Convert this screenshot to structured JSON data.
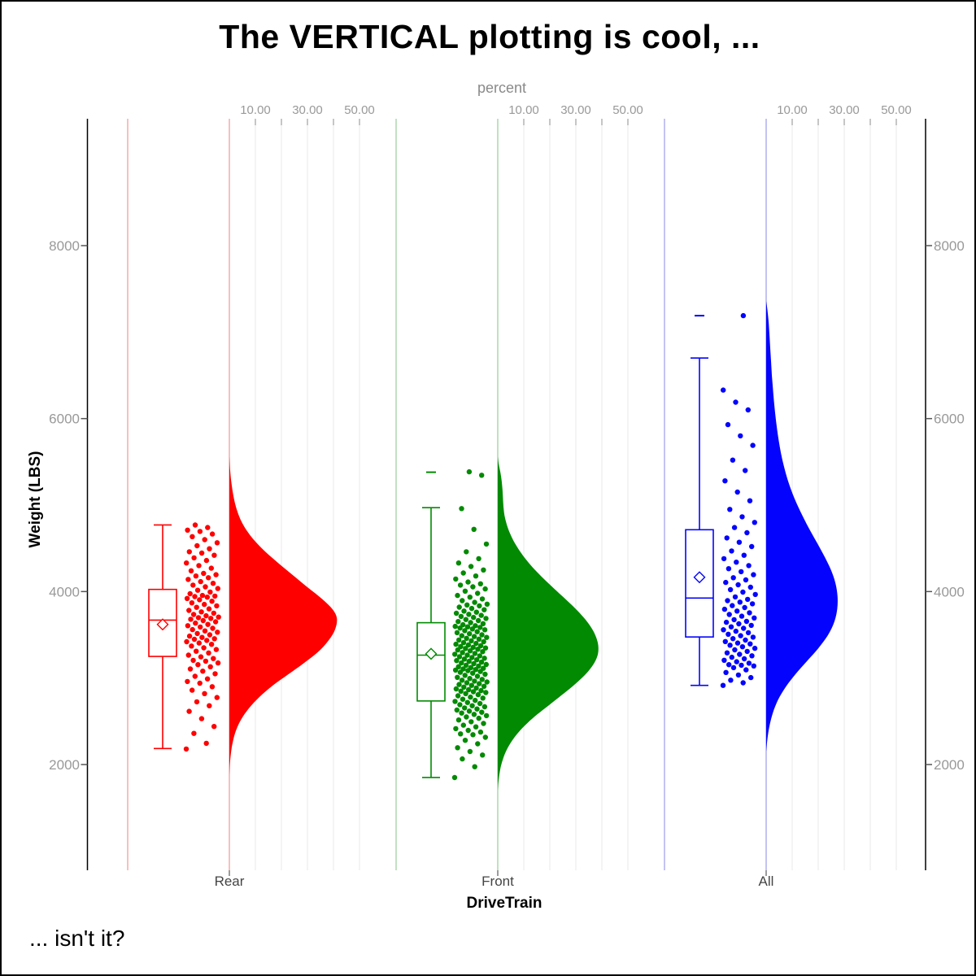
{
  "title": "The VERTICAL plotting is cool, ...",
  "footer_note": "... isn't it?",
  "chart_data": {
    "type": "raincloud (half-violin + box + jitter), vertical",
    "title": "The VERTICAL plotting is cool, ...",
    "x_axis": {
      "label": "DriveTrain",
      "categories": [
        "Rear",
        "Front",
        "All"
      ]
    },
    "y_axis": {
      "label": "Weight (LBS)",
      "ticks": [
        2000,
        4000,
        6000,
        8000
      ],
      "range": [
        1000,
        9400
      ],
      "sides": "both"
    },
    "percent_axis": {
      "label": "percent",
      "ticks": [
        10,
        20,
        30,
        40,
        50
      ],
      "labeled_ticks": [
        10,
        30,
        50
      ],
      "tick_format_decimals": 2,
      "position": "top, repeated per group"
    },
    "grid": "vertical percent gridlines, light gray",
    "legend": "none",
    "colors": {
      "Rear": "#fe0000",
      "Front": "#028a02",
      "All": "#0404fe",
      "Rear_pale": "#f6b0b0",
      "Front_pale": "#b2d8b2",
      "All_pale": "#b4b4f0",
      "gridline": "#ededed",
      "tick_label": "#999999",
      "axis_line": "#000000"
    },
    "groups": [
      {
        "name": "Rear",
        "color": "#fe0000",
        "pale_color": "#f6b0b0",
        "box": {
          "whisker_low": 2185,
          "q1": 3250,
          "median": 3670,
          "q3": 4025,
          "whisker_high": 4770,
          "mean": 3620,
          "outliers": []
        },
        "violin_profile": [
          [
            5560,
            0
          ],
          [
            5400,
            0.3
          ],
          [
            5250,
            0.8
          ],
          [
            5100,
            1.6
          ],
          [
            4950,
            2.8
          ],
          [
            4800,
            4.8
          ],
          [
            4650,
            8
          ],
          [
            4500,
            12.5
          ],
          [
            4350,
            18
          ],
          [
            4200,
            24
          ],
          [
            4050,
            30
          ],
          [
            3930,
            35
          ],
          [
            3800,
            39.5
          ],
          [
            3690,
            41.3
          ],
          [
            3560,
            40.6
          ],
          [
            3430,
            38
          ],
          [
            3300,
            34
          ],
          [
            3170,
            28.5
          ],
          [
            3040,
            22.5
          ],
          [
            2910,
            16.5
          ],
          [
            2780,
            11.5
          ],
          [
            2650,
            7.5
          ],
          [
            2520,
            4.5
          ],
          [
            2390,
            2.5
          ],
          [
            2260,
            1.3
          ],
          [
            2130,
            0.6
          ],
          [
            2000,
            0.2
          ],
          [
            1880,
            0
          ]
        ],
        "points": [
          2180,
          2245,
          2360,
          2440,
          2530,
          2615,
          2680,
          2725,
          2775,
          2820,
          2860,
          2900,
          2940,
          2960,
          2990,
          3020,
          3050,
          3080,
          3105,
          3130,
          3155,
          3175,
          3195,
          3205,
          3225,
          3245,
          3265,
          3290,
          3310,
          3330,
          3350,
          3370,
          3390,
          3405,
          3420,
          3435,
          3448,
          3455,
          3470,
          3485,
          3500,
          3515,
          3530,
          3545,
          3560,
          3575,
          3590,
          3605,
          3620,
          3635,
          3650,
          3665,
          3680,
          3690,
          3698,
          3705,
          3720,
          3735,
          3750,
          3765,
          3782,
          3800,
          3818,
          3835,
          3852,
          3870,
          3888,
          3905,
          3920,
          3935,
          3942,
          3948,
          3955,
          3975,
          3995,
          4015,
          4035,
          4055,
          4075,
          4095,
          4115,
          4140,
          4160,
          4180,
          4195,
          4210,
          4240,
          4270,
          4300,
          4330,
          4360,
          4390,
          4420,
          4445,
          4460,
          4495,
          4530,
          4565,
          4600,
          4635,
          4665,
          4695,
          4710,
          4740,
          4770
        ]
      },
      {
        "name": "Front",
        "color": "#028a02",
        "pale_color": "#b2d8b2",
        "box": {
          "whisker_low": 1850,
          "q1": 2735,
          "median": 3265,
          "q3": 3640,
          "whisker_high": 4970,
          "mean": 3280,
          "outliers": [
            5380
          ]
        },
        "violin_profile": [
          [
            5560,
            0
          ],
          [
            5470,
            0.4
          ],
          [
            5380,
            1
          ],
          [
            5280,
            1.5
          ],
          [
            5180,
            1.8
          ],
          [
            5080,
            2
          ],
          [
            4980,
            2.2
          ],
          [
            4880,
            2.6
          ],
          [
            4780,
            3.4
          ],
          [
            4680,
            4.6
          ],
          [
            4580,
            6.2
          ],
          [
            4480,
            8.2
          ],
          [
            4380,
            10.6
          ],
          [
            4280,
            13.4
          ],
          [
            4180,
            16.6
          ],
          [
            4080,
            20
          ],
          [
            3980,
            23.6
          ],
          [
            3880,
            27.2
          ],
          [
            3780,
            30.6
          ],
          [
            3680,
            33.6
          ],
          [
            3580,
            36
          ],
          [
            3480,
            37.7
          ],
          [
            3380,
            38.6
          ],
          [
            3280,
            38.5
          ],
          [
            3180,
            37.2
          ],
          [
            3080,
            34.8
          ],
          [
            2980,
            31.6
          ],
          [
            2880,
            27.8
          ],
          [
            2780,
            23.6
          ],
          [
            2680,
            19.4
          ],
          [
            2580,
            15.2
          ],
          [
            2480,
            11.4
          ],
          [
            2380,
            8.2
          ],
          [
            2280,
            5.6
          ],
          [
            2180,
            3.6
          ],
          [
            2080,
            2.2
          ],
          [
            1980,
            1.2
          ],
          [
            1880,
            0.6
          ],
          [
            1780,
            0.2
          ],
          [
            1700,
            0
          ]
        ],
        "points": [
          1850,
          1975,
          2065,
          2110,
          2150,
          2195,
          2240,
          2280,
          2315,
          2345,
          2355,
          2375,
          2395,
          2415,
          2435,
          2455,
          2475,
          2495,
          2515,
          2535,
          2550,
          2565,
          2580,
          2595,
          2605,
          2618,
          2630,
          2642,
          2655,
          2668,
          2680,
          2692,
          2705,
          2718,
          2730,
          2742,
          2755,
          2768,
          2780,
          2795,
          2808,
          2820,
          2832,
          2842,
          2848,
          2855,
          2865,
          2875,
          2885,
          2895,
          2905,
          2915,
          2925,
          2935,
          2945,
          2955,
          2965,
          2975,
          2985,
          2995,
          3008,
          3020,
          3032,
          3044,
          3056,
          3066,
          3076,
          3086,
          3092,
          3098,
          3105,
          3113,
          3121,
          3130,
          3139,
          3148,
          3157,
          3166,
          3175,
          3184,
          3193,
          3202,
          3211,
          3220,
          3229,
          3238,
          3247,
          3256,
          3265,
          3275,
          3285,
          3295,
          3305,
          3315,
          3325,
          3334,
          3342,
          3348,
          3355,
          3364,
          3373,
          3382,
          3391,
          3400,
          3410,
          3420,
          3430,
          3440,
          3450,
          3460,
          3470,
          3480,
          3490,
          3500,
          3512,
          3524,
          3536,
          3548,
          3558,
          3568,
          3578,
          3586,
          3592,
          3598,
          3605,
          3617,
          3629,
          3641,
          3653,
          3665,
          3677,
          3689,
          3701,
          3713,
          3725,
          3737,
          3749,
          3761,
          3775,
          3790,
          3805,
          3820,
          3835,
          3845,
          3855,
          3875,
          3895,
          3915,
          3935,
          3955,
          3980,
          4005,
          4030,
          4055,
          4075,
          4090,
          4110,
          4145,
          4180,
          4215,
          4250,
          4290,
          4330,
          4380,
          4460,
          4550,
          4720,
          4960,
          5345,
          5385
        ]
      },
      {
        "name": "All",
        "color": "#0404fe",
        "pale_color": "#b4b4f0",
        "box": {
          "whisker_low": 2915,
          "q1": 3475,
          "median": 3925,
          "q3": 4715,
          "whisker_high": 6700,
          "mean": 4165,
          "outliers": [
            7190
          ]
        },
        "violin_profile": [
          [
            7360,
            0
          ],
          [
            7250,
            0.5
          ],
          [
            7100,
            1
          ],
          [
            6950,
            1.3
          ],
          [
            6800,
            1.6
          ],
          [
            6650,
            1.9
          ],
          [
            6500,
            2.2
          ],
          [
            6350,
            2.6
          ],
          [
            6200,
            3
          ],
          [
            6050,
            3.5
          ],
          [
            5900,
            4.1
          ],
          [
            5750,
            4.8
          ],
          [
            5600,
            5.7
          ],
          [
            5450,
            6.8
          ],
          [
            5300,
            8.2
          ],
          [
            5150,
            9.9
          ],
          [
            5000,
            12
          ],
          [
            4850,
            14.4
          ],
          [
            4700,
            17
          ],
          [
            4550,
            19.8
          ],
          [
            4400,
            22.5
          ],
          [
            4250,
            24.9
          ],
          [
            4100,
            26.6
          ],
          [
            3950,
            27.4
          ],
          [
            3800,
            27.3
          ],
          [
            3650,
            26.2
          ],
          [
            3500,
            23.8
          ],
          [
            3350,
            20.2
          ],
          [
            3200,
            15.8
          ],
          [
            3050,
            11.4
          ],
          [
            2900,
            7.6
          ],
          [
            2750,
            4.6
          ],
          [
            2600,
            2.6
          ],
          [
            2450,
            1.3
          ],
          [
            2300,
            0.5
          ],
          [
            2150,
            0
          ]
        ],
        "points": [
          2915,
          2945,
          2975,
          3005,
          3035,
          3065,
          3095,
          3120,
          3140,
          3148,
          3155,
          3172,
          3189,
          3206,
          3223,
          3240,
          3257,
          3274,
          3291,
          3308,
          3326,
          3344,
          3362,
          3380,
          3395,
          3405,
          3422,
          3439,
          3456,
          3473,
          3490,
          3507,
          3524,
          3541,
          3558,
          3575,
          3592,
          3609,
          3627,
          3645,
          3655,
          3675,
          3695,
          3715,
          3735,
          3755,
          3775,
          3795,
          3815,
          3838,
          3858,
          3878,
          3895,
          3910,
          3938,
          3966,
          3994,
          4022,
          4050,
          4078,
          4106,
          4135,
          4160,
          4195,
          4230,
          4265,
          4300,
          4340,
          4380,
          4420,
          4470,
          4520,
          4570,
          4620,
          4680,
          4740,
          4800,
          4865,
          4950,
          5050,
          5150,
          5280,
          5400,
          5520,
          5690,
          5800,
          5930,
          6100,
          6190,
          6330,
          7190
        ]
      }
    ]
  }
}
